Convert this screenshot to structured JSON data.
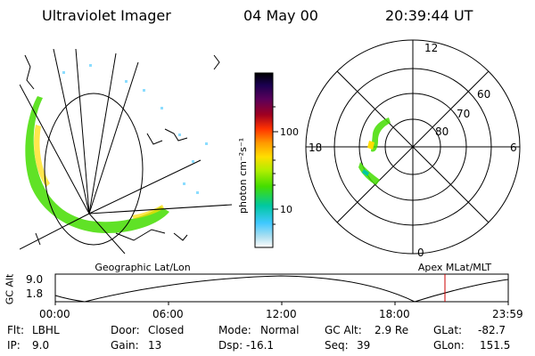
{
  "header": {
    "instrument": "Ultraviolet Imager",
    "date": "04 May 00",
    "time": "20:39:44 UT"
  },
  "left_panel": {
    "label": "Geographic Lat/Lon"
  },
  "colorbar": {
    "unit": "photon cm⁻²s⁻¹",
    "ticks": [
      "100",
      "10"
    ],
    "colors": [
      "#000000",
      "#1a0050",
      "#5a005a",
      "#a00020",
      "#ff3300",
      "#ff9900",
      "#ffdd00",
      "#b0ee00",
      "#44dd00",
      "#00c8a0",
      "#40c8ff",
      "#b0e0f0",
      "#ffffff"
    ]
  },
  "polar_panel": {
    "label": "Apex MLat/MLT",
    "mlt_labels": {
      "top": "12",
      "left": "18",
      "right": "6",
      "bottom": "0"
    },
    "lat_labels": [
      "60",
      "70",
      "80"
    ]
  },
  "altitude_plot": {
    "ylabel": "GC Alt",
    "yticks": [
      "9.0",
      "1.8"
    ],
    "xticks": [
      "00:00",
      "06:00",
      "12:00",
      "18:00",
      "23:59"
    ],
    "current_marker_hours": 20.66
  },
  "status": {
    "flt_label": "Flt:",
    "flt_value": "LBHL",
    "ip_label": "IP:",
    "ip_value": "9.0",
    "door_label": "Door:",
    "door_value": "Closed",
    "gain_label": "Gain:",
    "gain_value": "13",
    "mode_label": "Mode:",
    "mode_value": "Normal",
    "dsp_label": "Dsp:",
    "dsp_value": "-16.1",
    "gcalt_label": "GC Alt:",
    "gcalt_value": "2.9 Re",
    "seq_label": "Seq:",
    "seq_value": "39",
    "glat_label": "GLat:",
    "glat_value": "-82.7",
    "glon_label": "GLon:",
    "glon_value": "151.5"
  }
}
